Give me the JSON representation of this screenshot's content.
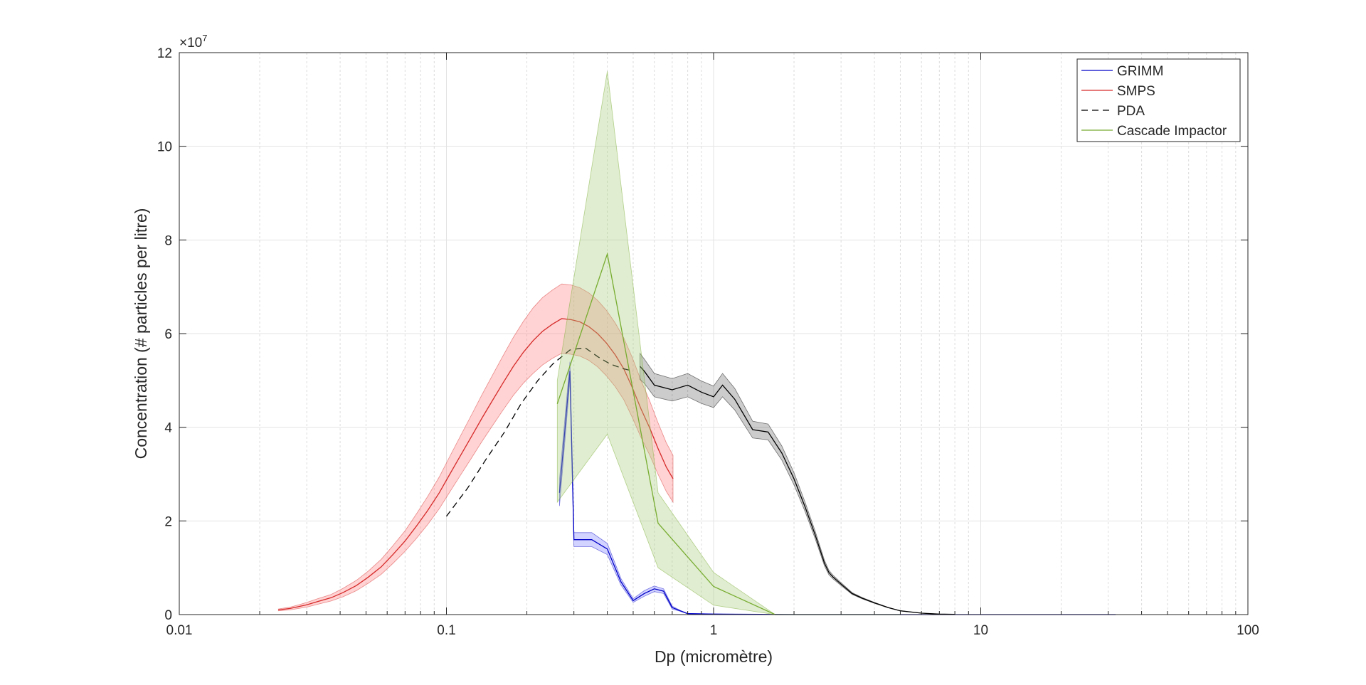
{
  "chart_data": {
    "type": "line",
    "xlabel": "Dp (micromètre)",
    "ylabel": "Concentration (# particles per litre)",
    "x_scale": "log",
    "xlim": [
      0.01,
      100
    ],
    "ylim": [
      0,
      120000000
    ],
    "x_ticks": [
      0.01,
      0.1,
      1,
      10,
      100
    ],
    "x_tick_labels": [
      "0.01",
      "0.1",
      "1",
      "10",
      "100"
    ],
    "y_ticks": [
      0,
      20000000,
      40000000,
      60000000,
      80000000,
      100000000,
      120000000
    ],
    "y_tick_labels": [
      "0",
      "2",
      "4",
      "6",
      "8",
      "10",
      "12"
    ],
    "y_exponent_label": "×10",
    "y_exponent_power": "7",
    "grid": true,
    "minor_grid": true,
    "legend_position": "top-right",
    "legend": [
      {
        "label": "GRIMM",
        "color": "#0000c8",
        "dash": "solid"
      },
      {
        "label": "SMPS",
        "color": "#d62a2a",
        "dash": "solid"
      },
      {
        "label": "PDA",
        "color": "#000000",
        "dash": "dashed"
      },
      {
        "label": "Cascade Impactor",
        "color": "#77ac30",
        "dash": "solid"
      }
    ],
    "series": [
      {
        "name": "SMPS",
        "color": "#d62a2a",
        "band_color": "#ff8080",
        "x": [
          0.0235,
          0.026,
          0.028,
          0.03,
          0.033,
          0.037,
          0.041,
          0.046,
          0.051,
          0.057,
          0.063,
          0.07,
          0.077,
          0.085,
          0.094,
          0.103,
          0.113,
          0.124,
          0.136,
          0.149,
          0.163,
          0.178,
          0.194,
          0.211,
          0.229,
          0.249,
          0.27,
          0.292,
          0.316,
          0.341,
          0.368,
          0.397,
          0.428,
          0.461,
          0.496,
          0.534,
          0.575,
          0.619,
          0.665,
          0.705
        ],
        "y": [
          1000000,
          1300000,
          1700000,
          2100000,
          2800000,
          3600000,
          4700000,
          6200000,
          8000000,
          10200000,
          12800000,
          15700000,
          18800000,
          22200000,
          26000000,
          30000000,
          34000000,
          38000000,
          42000000,
          45800000,
          49500000,
          53000000,
          56000000,
          58500000,
          60500000,
          62000000,
          63200000,
          63000000,
          62500000,
          61500000,
          60000000,
          58000000,
          55500000,
          52500000,
          48500000,
          44000000,
          40000000,
          35500000,
          31500000,
          29000000
        ],
        "band": [
          200000,
          300000,
          400000,
          500000,
          600000,
          700000,
          900000,
          1100000,
          1300000,
          1600000,
          1900000,
          2200000,
          2600000,
          3000000,
          3400000,
          3800000,
          4200000,
          4600000,
          5000000,
          5400000,
          5800000,
          6200000,
          6600000,
          7000000,
          7200000,
          7300000,
          7400000,
          7400000,
          7300000,
          7200000,
          7100000,
          7000000,
          6800000,
          6600000,
          6400000,
          6100000,
          5800000,
          5500000,
          5200000,
          5000000
        ]
      },
      {
        "name": "GRIMM",
        "color": "#0000c8",
        "band_color": "#8080ff",
        "x": [
          0.265,
          0.29,
          0.3,
          0.35,
          0.4,
          0.45,
          0.5,
          0.55,
          0.6,
          0.65,
          0.7,
          0.75,
          0.8,
          1.0,
          1.5,
          2.0,
          3.0,
          5.0,
          10.0,
          20.0,
          32.0
        ],
        "y": [
          26000000,
          52000000,
          16000000,
          16000000,
          14000000,
          7000000,
          3000000,
          4500000,
          5500000,
          5000000,
          1500000,
          800000,
          200000,
          100000,
          50000,
          0,
          0,
          0,
          0,
          0,
          0
        ],
        "band": [
          2800000,
          2000000,
          1500000,
          1500000,
          1200000,
          700000,
          400000,
          600000,
          600000,
          500000,
          300000,
          100000,
          50000,
          20000,
          0,
          0,
          0,
          0,
          0,
          0,
          0
        ]
      },
      {
        "name": "PDA",
        "color": "#000000",
        "dash": "dashed",
        "x": [
          0.1,
          0.12,
          0.14,
          0.165,
          0.19,
          0.22,
          0.25,
          0.29,
          0.33,
          0.37,
          0.41,
          0.46,
          0.5
        ],
        "y": [
          21000000,
          27000000,
          33000000,
          39000000,
          45000000,
          50000000,
          53500000,
          56500000,
          57000000,
          55000000,
          53500000,
          52500000,
          52000000
        ]
      },
      {
        "name": "",
        "color": "#000000",
        "band_color": "#000000",
        "x": [
          0.53,
          0.55,
          0.6,
          0.7,
          0.8,
          0.9,
          1.0,
          1.08,
          1.2,
          1.4,
          1.6,
          1.8,
          2.0,
          2.2,
          2.4,
          2.6,
          2.7,
          2.8,
          3.0,
          3.3,
          3.6,
          4.0,
          4.5,
          5.0,
          6.0,
          7.0,
          8.0
        ],
        "y": [
          53000000,
          52000000,
          49000000,
          48000000,
          49000000,
          47500000,
          46500000,
          49000000,
          46000000,
          39500000,
          39000000,
          34500000,
          29000000,
          23000000,
          17000000,
          11000000,
          9000000,
          8000000,
          6500000,
          4500000,
          3500000,
          2500000,
          1500000,
          800000,
          300000,
          100000,
          50000
        ],
        "band": [
          2800000,
          2600000,
          2500000,
          2400000,
          2500000,
          2400000,
          2300000,
          2500000,
          2300000,
          1800000,
          1700000,
          1500000,
          1300000,
          1000000,
          800000,
          600000,
          500000,
          400000,
          300000,
          200000,
          150000,
          100000,
          50000,
          20000,
          0,
          0,
          0
        ]
      },
      {
        "name": "Cascade Impactor",
        "color": "#77ac30",
        "band_color": "#a6cc78",
        "x": [
          0.26,
          0.4,
          0.62,
          1.0,
          1.7,
          3.0,
          5.0
        ],
        "y": [
          45000000,
          77000000,
          19500000,
          6000000,
          0,
          0,
          0
        ],
        "y_upper": [
          50000000,
          116000000,
          26000000,
          9000000,
          0,
          0,
          0
        ],
        "y_lower": [
          24000000,
          38500000,
          10000000,
          2000000,
          0,
          0,
          0
        ]
      }
    ]
  }
}
